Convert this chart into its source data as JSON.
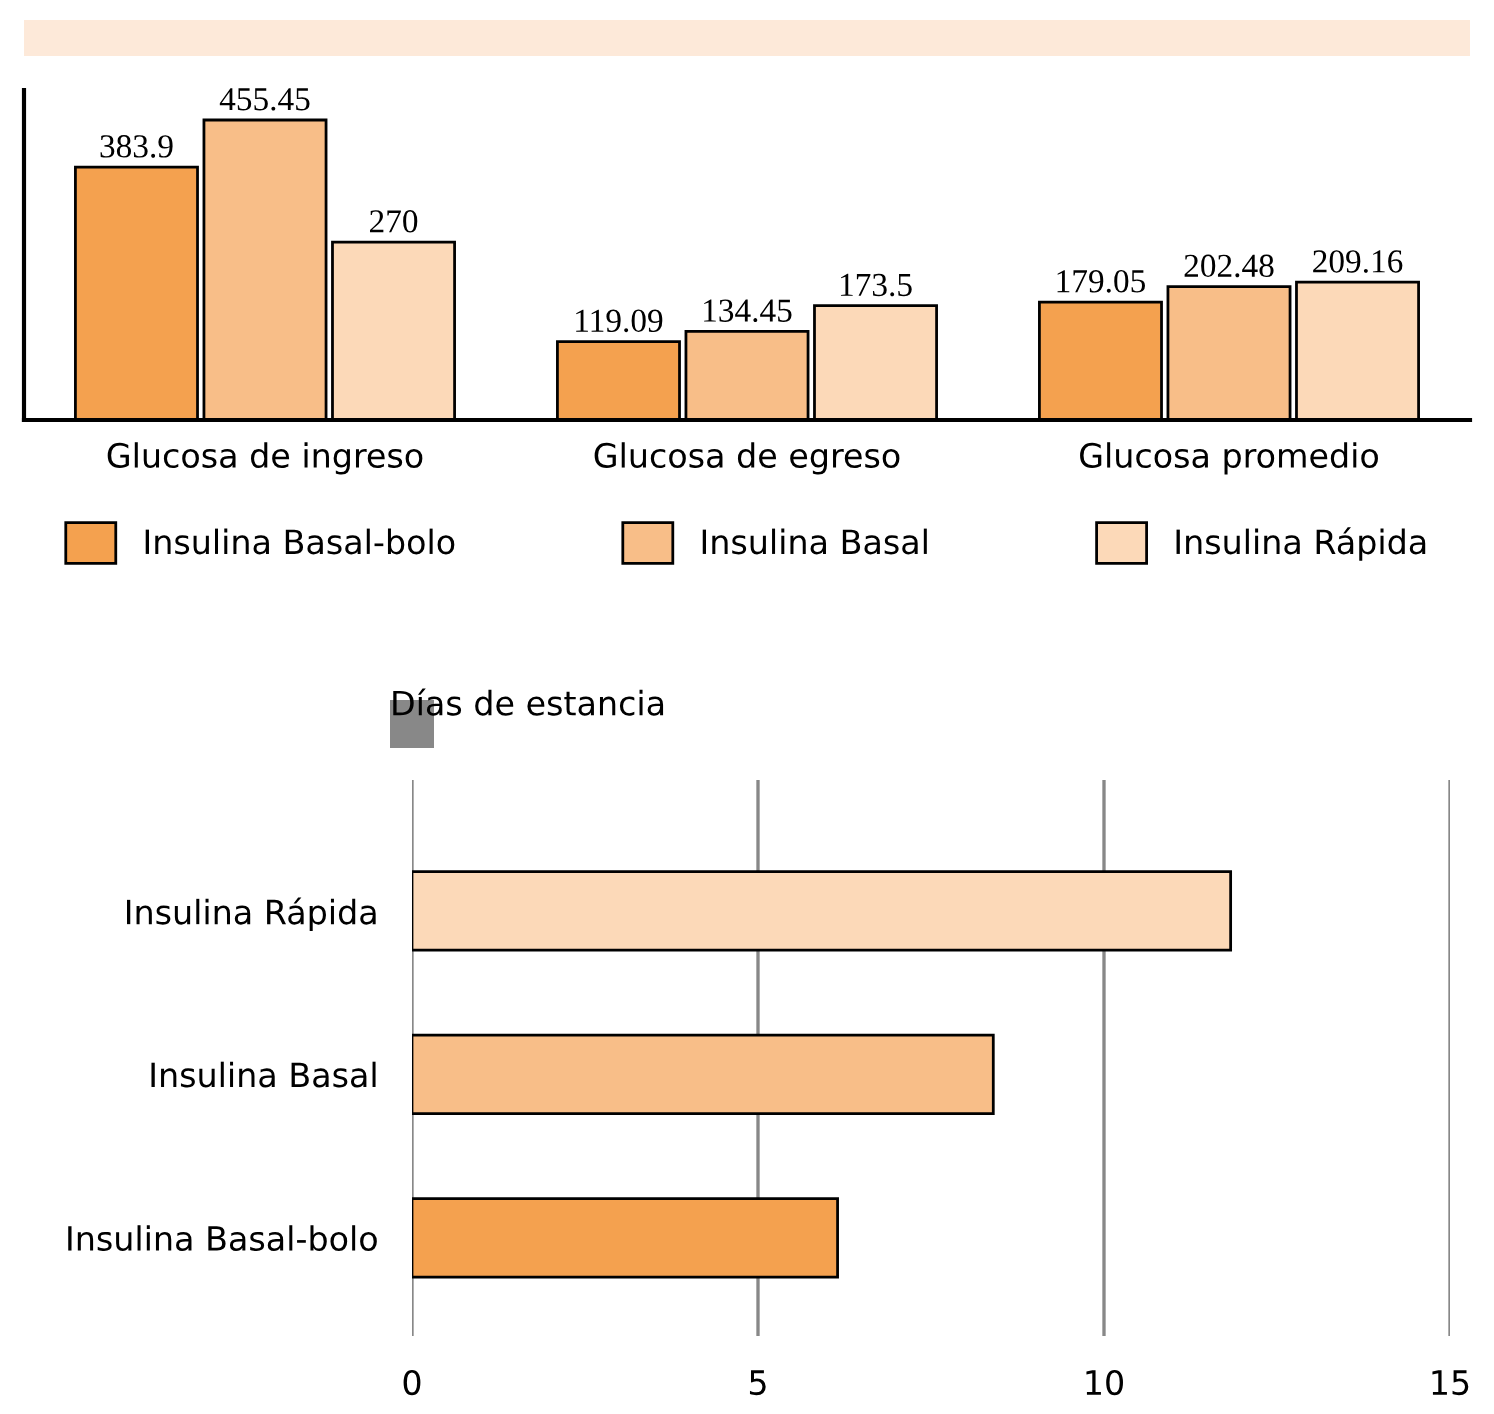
{
  "chart_data": [
    {
      "type": "bar",
      "categories": [
        "Glucosa de ingreso",
        "Glucosa de egreso",
        "Glucosa promedio"
      ],
      "series": [
        {
          "name": "Insulina Basal-bolo",
          "color": "#f4a14f",
          "values": [
            383.9,
            119.09,
            179.05
          ]
        },
        {
          "name": "Insulina Basal",
          "color": "#f8be88",
          "values": [
            455.45,
            134.45,
            202.48
          ]
        },
        {
          "name": "Insulina Rápida",
          "color": "#fcd9b8",
          "values": [
            270,
            173.5,
            209.16
          ]
        }
      ],
      "data_labels": true,
      "legend": "bottom",
      "grid": false
    },
    {
      "type": "bar",
      "orientation": "horizontal",
      "title": "Días de estancia",
      "categories": [
        "Insulina Rápida",
        "Insulina Basal",
        "Insulina Basal-bolo"
      ],
      "values": [
        11.83,
        8.4,
        6.15
      ],
      "colors": [
        "#fcd9b8",
        "#f8be88",
        "#f4a14f"
      ],
      "xlim": [
        0,
        15
      ],
      "xticks": [
        0,
        5,
        10,
        15
      ],
      "grid": "x"
    }
  ]
}
